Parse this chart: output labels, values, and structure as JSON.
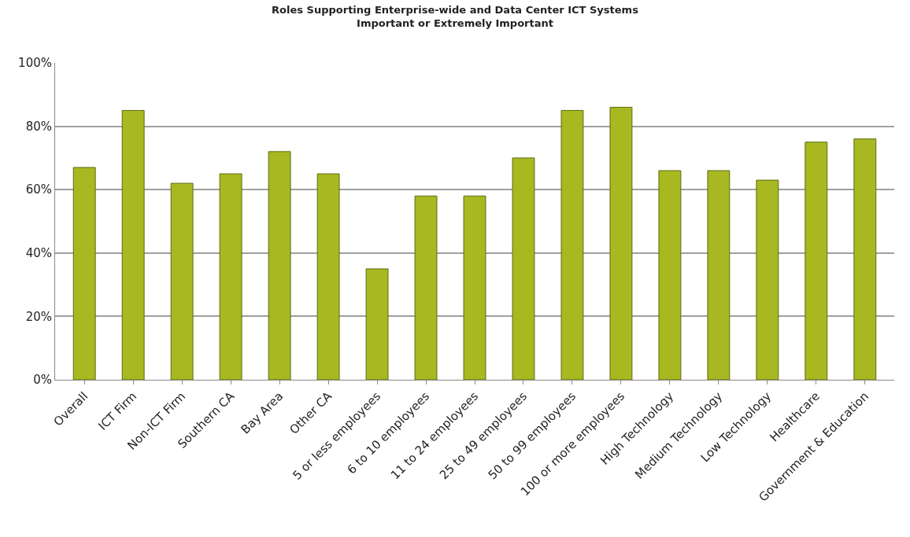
{
  "chart_data": {
    "type": "bar",
    "title": "Roles Supporting Enterprise-wide and Data Center ICT Systems\nImportant or Extremely Important",
    "categories": [
      "Overall",
      "ICT Firm",
      "Non-ICT Firm",
      "Southern CA",
      "Bay Area",
      "Other CA",
      "5 or less employees",
      "6 to 10 employees",
      "11 to 24 employees",
      "25 to 49 employees",
      "50 to 99 employees",
      "100 or more employees",
      "High Technology",
      "Medium Technology",
      "Low Technology",
      "Healthcare",
      "Government & Education"
    ],
    "values": [
      67,
      85,
      62,
      65,
      72,
      65,
      35,
      58,
      58,
      70,
      85,
      86,
      66,
      66,
      63,
      75,
      76
    ],
    "color": "#a8b820",
    "ylim": [
      0,
      100
    ],
    "yticks": [
      {
        "value": 0,
        "label": "0%"
      },
      {
        "value": 20,
        "label": "20%"
      },
      {
        "value": 40,
        "label": "40%"
      },
      {
        "value": 60,
        "label": "60%"
      },
      {
        "value": 80,
        "label": "80%"
      },
      {
        "value": 100,
        "label": "100%"
      }
    ],
    "grid": "y"
  }
}
